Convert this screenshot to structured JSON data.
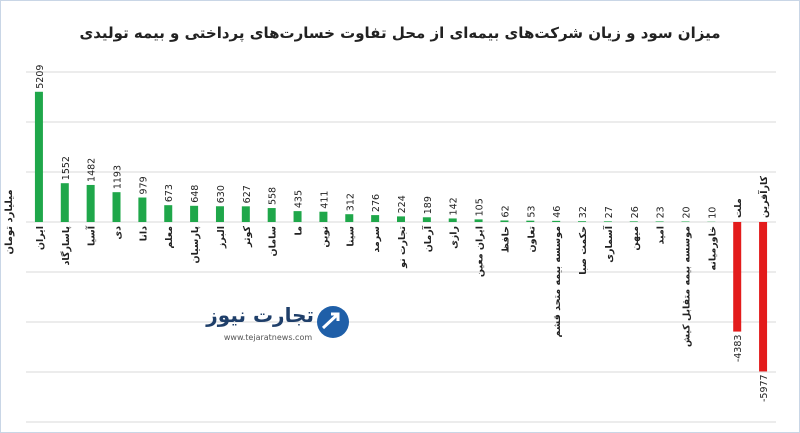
{
  "chart_data": {
    "type": "bar",
    "title": "میزان سود و زیان شرکت‌های بیمه‌ای از محل تفاوت خسارت‌های پرداختی و بیمه تولیدی",
    "y_label": "میلیارد تومان",
    "categories": [
      "ایران",
      "پاسارگاد",
      "آسیا",
      "دی",
      "دانا",
      "معلم",
      "پارسیان",
      "البرز",
      "کوثر",
      "سامان",
      "ما",
      "نوین",
      "سینا",
      "سرمد",
      "تجارت نو",
      "آرمان",
      "رازی",
      "ایران معین",
      "حافظ",
      "تعاون",
      "موسسه بیمه متحد قشم",
      "حکمت صبا",
      "آسماری",
      "میهن",
      "امید",
      "موسسه بیمه متقابل کیش",
      "خاورمیانه",
      "ملت",
      "کارآفرین"
    ],
    "values": [
      5209,
      1552,
      1482,
      1193,
      979,
      673,
      648,
      630,
      627,
      558,
      435,
      411,
      312,
      276,
      224,
      189,
      142,
      105,
      62,
      53,
      46,
      32,
      27,
      26,
      23,
      20,
      10,
      -4383,
      -5977
    ],
    "positive_color": "#1fa74a",
    "negative_color": "#e31b1b",
    "ylim": [
      -8000,
      6000
    ],
    "yticks": [
      -8000,
      -6000,
      -4000,
      -2000,
      0,
      2000,
      4000,
      6000
    ],
    "grid": true,
    "watermark": {
      "name": "تجارت نیوز",
      "url": "www.tejaratnews.com"
    }
  }
}
